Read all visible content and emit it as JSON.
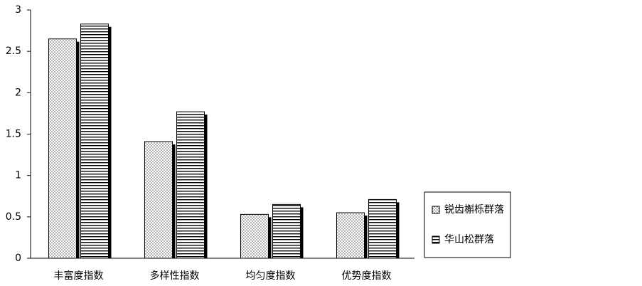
{
  "chart_data": {
    "type": "bar",
    "categories": [
      "丰富度指数",
      "多样性指数",
      "均匀度指数",
      "优势度指数"
    ],
    "series": [
      {
        "name": "锐齿槲栎群落",
        "color": "#000000",
        "pattern": "dots",
        "values": [
          2.65,
          1.41,
          0.53,
          0.55
        ]
      },
      {
        "name": "华山松群落",
        "color": "#000000",
        "pattern": "hlines",
        "values": [
          2.83,
          1.77,
          0.65,
          0.71
        ]
      }
    ],
    "ylim": [
      0,
      3
    ],
    "yticks": [
      0,
      0.5,
      1,
      1.5,
      2,
      2.5,
      3
    ],
    "grid": false,
    "legend": "right"
  }
}
